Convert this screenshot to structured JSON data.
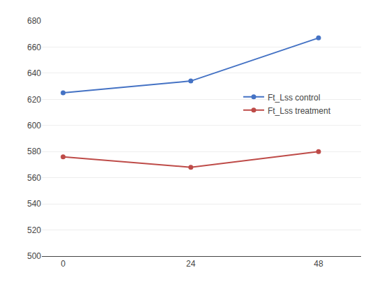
{
  "chart_data": {
    "type": "line",
    "x": [
      0,
      24,
      48
    ],
    "series": [
      {
        "name": "Ft_Lss control",
        "color": "#4472C4",
        "values": [
          625,
          634,
          667
        ],
        "marker": "circle"
      },
      {
        "name": "Ft_Lss treatment",
        "color": "#BE4B48",
        "values": [
          576,
          568,
          580
        ],
        "marker": "circle"
      }
    ],
    "xlim": [
      -4,
      56
    ],
    "xticks": [
      0,
      24,
      48
    ],
    "ylim": [
      500,
      680
    ],
    "yticks": [
      500,
      520,
      540,
      560,
      580,
      600,
      620,
      640,
      660,
      680
    ],
    "grid": "y",
    "legend": "right"
  }
}
